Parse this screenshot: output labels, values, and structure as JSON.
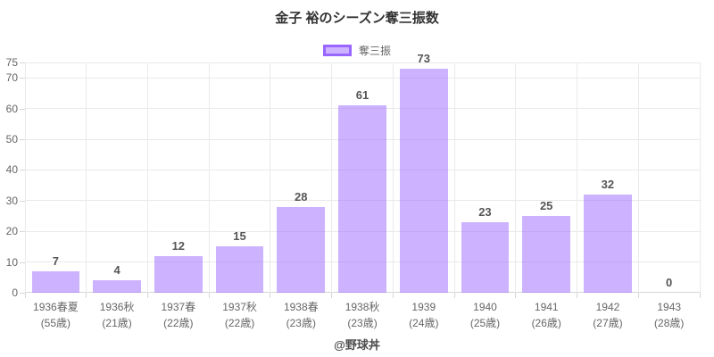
{
  "title": "金子 裕のシーズン奪三振数",
  "legend": {
    "label": "奪三振"
  },
  "footer_credit": "@野球丼",
  "colors": {
    "bar_fill": "rgba(153,102,255,0.5)",
    "bar_border": "#9966ff",
    "grid": "#e9e9e9",
    "axis_text": "#666666",
    "value_label": "#555555",
    "title_text": "#333333"
  },
  "chart_data": {
    "type": "bar",
    "title": "金子 裕のシーズン奪三振数",
    "legend_entries": [
      "奪三振"
    ],
    "legend_position": "top",
    "categories": [
      "1936春夏",
      "1936秋",
      "1937春",
      "1937秋",
      "1938春",
      "1938秋",
      "1939",
      "1940",
      "1941",
      "1942",
      "1943"
    ],
    "category_sublabels": [
      "(55歳)",
      "(21歳)",
      "(22歳)",
      "(22歳)",
      "(23歳)",
      "(23歳)",
      "(24歳)",
      "(25歳)",
      "(26歳)",
      "(27歳)",
      "(28歳)"
    ],
    "values": [
      7,
      4,
      12,
      15,
      28,
      61,
      73,
      23,
      25,
      32,
      0
    ],
    "xlabel": "",
    "ylabel": "",
    "ylim": [
      0,
      75
    ],
    "yticks": [
      0,
      10,
      20,
      30,
      40,
      50,
      60,
      70,
      75
    ],
    "grid": true
  }
}
